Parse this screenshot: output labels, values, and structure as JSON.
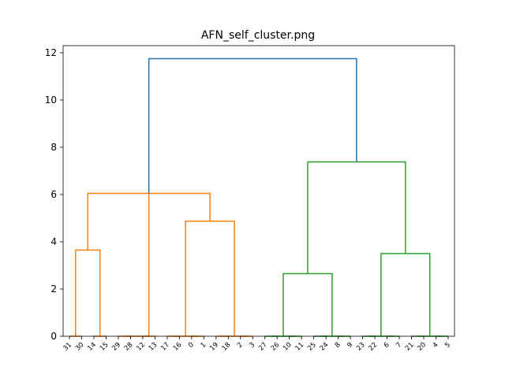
{
  "chart_data": {
    "type": "dendrogram",
    "title": "AFN_self_cluster.png",
    "ylim": [
      0,
      12.3
    ],
    "yticks": [
      0,
      2,
      4,
      6,
      8,
      10,
      12
    ],
    "leaves": [
      "31",
      "30",
      "14",
      "15",
      "29",
      "28",
      "12",
      "13",
      "17",
      "16",
      "0",
      "1",
      "19",
      "18",
      "2",
      "3",
      "27",
      "26",
      "10",
      "11",
      "25",
      "24",
      "8",
      "9",
      "23",
      "22",
      "6",
      "7",
      "21",
      "20",
      "4",
      "5"
    ],
    "colors": {
      "orange": "#ff7f0e",
      "green": "#2ca02c",
      "blue": "#1f77b4"
    },
    "links": [
      {
        "name": "link-31-30",
        "left": 0,
        "right": 1,
        "height": 0,
        "color": "orange"
      },
      {
        "name": "link-14-15",
        "left": 2,
        "right": 3,
        "height": 0,
        "color": "orange"
      },
      {
        "name": "link-31-15",
        "left": 0.5,
        "right": 2.5,
        "height": 3.65,
        "color": "orange"
      },
      {
        "name": "link-29-28",
        "left": 4,
        "right": 5,
        "height": 0,
        "color": "orange"
      },
      {
        "name": "link-12-13",
        "left": 6,
        "right": 7,
        "height": 0,
        "color": "orange"
      },
      {
        "name": "link-29-13",
        "left": 4.5,
        "right": 6.5,
        "height": 0,
        "color": "orange"
      },
      {
        "name": "link-17-16",
        "left": 8,
        "right": 9,
        "height": 0,
        "color": "orange"
      },
      {
        "name": "link-0-1",
        "left": 10,
        "right": 11,
        "height": 0,
        "color": "orange"
      },
      {
        "name": "link-17-1",
        "left": 8.5,
        "right": 10.5,
        "height": 0,
        "color": "orange"
      },
      {
        "name": "link-19-18",
        "left": 12,
        "right": 13,
        "height": 0,
        "color": "orange"
      },
      {
        "name": "link-2-3",
        "left": 14,
        "right": 15,
        "height": 0,
        "color": "orange"
      },
      {
        "name": "link-19-3",
        "left": 12.5,
        "right": 14.5,
        "height": 0,
        "color": "orange"
      },
      {
        "name": "link-17-3",
        "left": 9.5,
        "right": 13.5,
        "height": 4.87,
        "color": "orange"
      },
      {
        "name": "link-orange-top",
        "left": 1.5,
        "right": 11.5,
        "height": 6.05,
        "color": "orange"
      },
      {
        "name": "link-27-26",
        "left": 16,
        "right": 17,
        "height": 0,
        "color": "green"
      },
      {
        "name": "link-10-11",
        "left": 18,
        "right": 19,
        "height": 0,
        "color": "green"
      },
      {
        "name": "link-27-11",
        "left": 16.5,
        "right": 18.5,
        "height": 0,
        "color": "green"
      },
      {
        "name": "link-25-24",
        "left": 20,
        "right": 21,
        "height": 0,
        "color": "green"
      },
      {
        "name": "link-8-9",
        "left": 22,
        "right": 23,
        "height": 0,
        "color": "green"
      },
      {
        "name": "link-25-9",
        "left": 20.5,
        "right": 22.5,
        "height": 0,
        "color": "green"
      },
      {
        "name": "link-27-9",
        "left": 17.5,
        "right": 21.5,
        "height": 2.65,
        "color": "green"
      },
      {
        "name": "link-23-22",
        "left": 24,
        "right": 25,
        "height": 0,
        "color": "green"
      },
      {
        "name": "link-6-7",
        "left": 26,
        "right": 27,
        "height": 0,
        "color": "green"
      },
      {
        "name": "link-23-7",
        "left": 24.5,
        "right": 26.5,
        "height": 0,
        "color": "green"
      },
      {
        "name": "link-21-20",
        "left": 28,
        "right": 29,
        "height": 0,
        "color": "green"
      },
      {
        "name": "link-4-5",
        "left": 30,
        "right": 31,
        "height": 0,
        "color": "green"
      },
      {
        "name": "link-21-5",
        "left": 28.5,
        "right": 30.5,
        "height": 0,
        "color": "green"
      },
      {
        "name": "link-23-5",
        "left": 25.5,
        "right": 29.5,
        "height": 3.5,
        "color": "green"
      },
      {
        "name": "link-green-top",
        "left": 19.5,
        "right": 27.5,
        "height": 7.38,
        "color": "green"
      },
      {
        "name": "link-root",
        "left": 6.5,
        "right": 23.5,
        "height": 11.75,
        "color": "blue"
      }
    ]
  }
}
